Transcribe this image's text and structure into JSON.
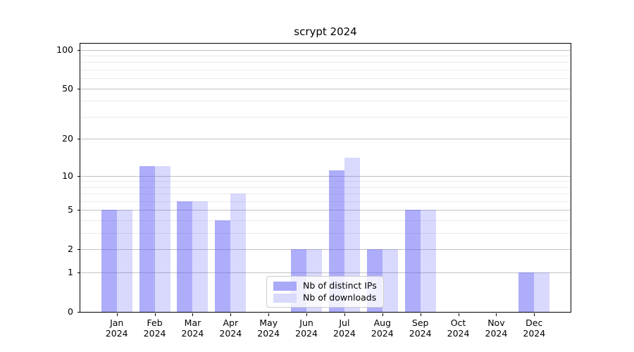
{
  "chart_data": {
    "type": "bar",
    "title": "scrypt 2024",
    "months": [
      "Jan",
      "Feb",
      "Mar",
      "Apr",
      "May",
      "Jun",
      "Jul",
      "Aug",
      "Sep",
      "Oct",
      "Nov",
      "Dec"
    ],
    "year": "2024",
    "series": [
      {
        "name": "Nb of distinct IPs",
        "color": "rgba(80,80,245,0.47)",
        "swatch_color": "#a9a9f8",
        "values": [
          5,
          12,
          6,
          4,
          0,
          2,
          11,
          2,
          5,
          0,
          0,
          1
        ]
      },
      {
        "name": "Nb of downloads",
        "color": "rgba(80,80,245,0.22)",
        "swatch_color": "#d9d9fb",
        "values": [
          5,
          12,
          6,
          7,
          0,
          2,
          14,
          2,
          5,
          0,
          0,
          1
        ]
      }
    ],
    "y_axis": {
      "scale": "log10(1+value)",
      "major_ticks": [
        0,
        1,
        2,
        5,
        10,
        20,
        50,
        100
      ],
      "minor_ticks": [
        3,
        4,
        6,
        7,
        8,
        9,
        30,
        40,
        60,
        70,
        80,
        90
      ],
      "range_top_value": 112
    },
    "x_axis": {
      "tick_label_line2": "2024"
    },
    "legend": {
      "position": "lower center"
    },
    "grid": {
      "major_color": "#c2c2c2",
      "minor_color": "#ebebeb"
    }
  }
}
